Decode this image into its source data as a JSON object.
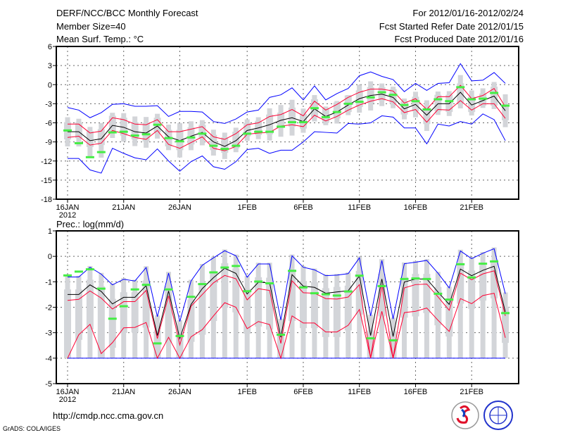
{
  "header": {
    "title": "DERF/NCC/BCC Monthly Forecast",
    "member_size": "Member Size=40",
    "variable": "Mean Surf. Temp.: °C",
    "period": "For 2012/01/16-2012/02/24",
    "started": "Fcst Started Refer Date 2012/01/15",
    "produced": "Fcst Produced Date 2012/01/16"
  },
  "footer": {
    "url": "http://cmdp.ncc.cma.gov.cn",
    "credit": "GrADS: COLA/IGES",
    "logos": [
      "BCC",
      "NCC"
    ]
  },
  "colors": {
    "max_min": "#0000ff",
    "spread": "#ff0033",
    "mean": "#000000",
    "obs": "#44ee44",
    "box": "#d3d5d9"
  },
  "chart_data": [
    {
      "type": "line",
      "title": "Mean Surf. Temp.: °C",
      "x_days": 40,
      "xticks": [
        {
          "day": 0,
          "label": "16JAN",
          "sub": "2012"
        },
        {
          "day": 5,
          "label": "21JAN"
        },
        {
          "day": 10,
          "label": "26JAN"
        },
        {
          "day": 16,
          "label": "1FEB"
        },
        {
          "day": 21,
          "label": "6FEB"
        },
        {
          "day": 26,
          "label": "11FEB"
        },
        {
          "day": 31,
          "label": "16FEB"
        },
        {
          "day": 36,
          "label": "21FEB"
        }
      ],
      "ylim": [
        -18,
        6
      ],
      "yticks": [
        6,
        3,
        0,
        -3,
        -6,
        -9,
        -12,
        -15,
        -18
      ],
      "grid": true,
      "series": [
        {
          "name": "ensemble_max",
          "color": "#0000ff",
          "values": [
            -3.6,
            -4.0,
            -5.2,
            -4.4,
            -3.1,
            -3.0,
            -3.4,
            -3.4,
            -3.3,
            -5.0,
            -4.2,
            -4.2,
            -4.3,
            -5.8,
            -6.1,
            -5.4,
            -4.3,
            -4.0,
            -2.0,
            -1.6,
            -0.5,
            -2.4,
            -0.2,
            -2.4,
            -1.4,
            -0.6,
            1.4,
            2.0,
            1.3,
            0.8,
            -1.1,
            0.2,
            -0.9,
            0.2,
            0.3,
            3.3,
            0.6,
            0.7,
            1.9,
            0.2
          ]
        },
        {
          "name": "ensemble_min",
          "color": "#0000ff",
          "values": [
            -11.6,
            -11.6,
            -13.4,
            -13.9,
            -10.0,
            -10.8,
            -11.5,
            -11.8,
            -10.1,
            -12.0,
            -13.6,
            -12.1,
            -11.2,
            -12.9,
            -13.3,
            -12.1,
            -10.2,
            -10.0,
            -10.8,
            -10.3,
            -10.3,
            -9.0,
            -7.4,
            -7.5,
            -7.6,
            -6.1,
            -6.2,
            -6.0,
            -4.9,
            -5.1,
            -6.8,
            -6.8,
            -9.3,
            -6.2,
            -6.5,
            -5.8,
            -6.2,
            -4.6,
            -5.5,
            -8.8
          ]
        },
        {
          "name": "upper_spread",
          "color": "#ff0033",
          "values": [
            -6.2,
            -6.2,
            -7.6,
            -7.3,
            -5.2,
            -5.5,
            -6.2,
            -6.3,
            -5.5,
            -7.4,
            -7.4,
            -7.0,
            -6.6,
            -8.2,
            -8.6,
            -7.7,
            -6.3,
            -6.0,
            -5.0,
            -4.7,
            -3.9,
            -4.9,
            -2.6,
            -4.0,
            -3.1,
            -2.0,
            -1.2,
            -0.7,
            -0.7,
            -1.0,
            -2.9,
            -2.2,
            -3.9,
            -1.9,
            -1.9,
            -0.1,
            -2.2,
            -1.7,
            -0.6,
            -3.5
          ]
        },
        {
          "name": "lower_spread",
          "color": "#ff0033",
          "values": [
            -8.3,
            -8.1,
            -9.5,
            -9.2,
            -7.2,
            -7.7,
            -8.3,
            -8.6,
            -7.2,
            -9.4,
            -10.0,
            -9.1,
            -8.2,
            -10.0,
            -10.4,
            -9.7,
            -7.8,
            -7.6,
            -7.5,
            -6.5,
            -6.3,
            -6.6,
            -4.8,
            -5.7,
            -5.0,
            -4.0,
            -3.2,
            -2.6,
            -2.2,
            -2.7,
            -4.4,
            -3.9,
            -5.9,
            -3.9,
            -4.0,
            -2.5,
            -4.0,
            -3.0,
            -3.0,
            -5.3
          ]
        },
        {
          "name": "ensemble_mean",
          "color": "#000000",
          "values": [
            -7.4,
            -7.4,
            -8.8,
            -8.5,
            -6.4,
            -6.7,
            -7.4,
            -7.6,
            -6.5,
            -8.2,
            -8.8,
            -8.1,
            -7.5,
            -9.0,
            -9.7,
            -8.8,
            -7.2,
            -6.8,
            -6.3,
            -5.6,
            -5.2,
            -5.8,
            -3.8,
            -5.0,
            -4.3,
            -3.2,
            -2.2,
            -1.7,
            -1.5,
            -2.0,
            -3.8,
            -3.1,
            -4.8,
            -3.0,
            -3.0,
            -1.2,
            -3.2,
            -2.5,
            -1.8,
            -4.1
          ]
        },
        {
          "name": "observed",
          "color": "#44ee44",
          "values": [
            -7.2,
            -9.2,
            -11.4,
            -10.6,
            -7.5,
            -7.4,
            -8.0,
            -7.8,
            -6.3,
            -8.4,
            -8.9,
            -8.3,
            -7.7,
            -9.6,
            -10.1,
            -9.6,
            -7.7,
            -7.4,
            -7.4,
            -6.6,
            -5.9,
            -5.9,
            -3.7,
            -5.1,
            -4.3,
            -3.0,
            -2.7,
            -2.0,
            -1.2,
            -1.6,
            -3.2,
            -2.6,
            -3.9,
            -2.3,
            -2.6,
            -0.4,
            -2.3,
            -2.2,
            -1.3,
            -3.3
          ]
        }
      ]
    },
    {
      "type": "line",
      "title": "Prec.: log(mm/d)",
      "x_days": 40,
      "xticks": [
        {
          "day": 0,
          "label": "16JAN",
          "sub": "2012"
        },
        {
          "day": 5,
          "label": "21JAN"
        },
        {
          "day": 10,
          "label": "26JAN"
        },
        {
          "day": 16,
          "label": "1FEB"
        },
        {
          "day": 21,
          "label": "6FEB"
        },
        {
          "day": 26,
          "label": "11FEB"
        },
        {
          "day": 31,
          "label": "16FEB"
        },
        {
          "day": 36,
          "label": "21FEB"
        }
      ],
      "ylim": [
        -5,
        1
      ],
      "yticks": [
        1,
        0,
        -1,
        -2,
        -3,
        -4,
        -5
      ],
      "grid": true,
      "series": [
        {
          "name": "ensemble_max",
          "color": "#0000ff",
          "values": [
            -0.81,
            -0.81,
            -0.43,
            -0.7,
            -1.12,
            -0.9,
            -0.97,
            -0.44,
            -2.37,
            -0.66,
            -2.56,
            -0.97,
            -0.35,
            -0.06,
            0.22,
            0.02,
            -0.82,
            -0.3,
            -0.3,
            -2.5,
            0.02,
            -0.43,
            -0.53,
            -0.76,
            -0.74,
            -0.68,
            -0.06,
            -2.34,
            -0.16,
            -2.46,
            -0.29,
            -0.23,
            -0.16,
            -0.66,
            -1.24,
            0.21,
            -0.09,
            0.12,
            0.3,
            -1.47
          ]
        },
        {
          "name": "ensemble_min",
          "color": "#0000ff",
          "values": [
            -4,
            -4,
            -4,
            -4,
            -4,
            -4,
            -4,
            -4,
            -4,
            -4,
            -4,
            -4,
            -4,
            -4,
            -4,
            -4,
            -4,
            -4,
            -4,
            -4,
            -4,
            -4,
            -4,
            -4,
            -4,
            -4,
            -4,
            -4,
            -4,
            -4,
            -4,
            -4,
            -4,
            -4,
            -4,
            -4,
            -4,
            -4,
            -4,
            -4
          ]
        },
        {
          "name": "upper_spread",
          "color": "#ff0033",
          "values": [
            -1.73,
            -1.69,
            -1.36,
            -1.64,
            -2.07,
            -1.78,
            -1.78,
            -1.34,
            -3.23,
            -1.55,
            -3.48,
            -1.96,
            -1.5,
            -1.04,
            -0.75,
            -0.88,
            -1.71,
            -1.27,
            -1.34,
            -3.42,
            -0.96,
            -1.43,
            -1.45,
            -1.66,
            -1.68,
            -1.6,
            -1.11,
            -4.0,
            -1.12,
            -4.0,
            -1.24,
            -1.11,
            -1.09,
            -1.59,
            -2.12,
            -0.66,
            -0.92,
            -0.69,
            -0.57,
            -2.34
          ]
        },
        {
          "name": "lower_spread",
          "color": "#ff0033",
          "values": [
            -4.0,
            -3.08,
            -2.67,
            -3.82,
            -3.39,
            -2.81,
            -2.79,
            -2.6,
            -4.0,
            -3.18,
            -4.0,
            -3.16,
            -2.88,
            -2.34,
            -1.82,
            -2.0,
            -2.84,
            -2.56,
            -2.68,
            -4.0,
            -2.34,
            -2.62,
            -2.62,
            -2.97,
            -2.97,
            -2.71,
            -2.09,
            -3.98,
            -2.16,
            -4.0,
            -2.21,
            -2.16,
            -2.03,
            -2.51,
            -2.95,
            -1.66,
            -1.86,
            -1.54,
            -1.45,
            -3.2
          ]
        },
        {
          "name": "ensemble_mean",
          "color": "#000000",
          "values": [
            -1.5,
            -1.5,
            -1.12,
            -1.38,
            -1.87,
            -1.61,
            -1.61,
            -1.15,
            -3.11,
            -1.36,
            -3.23,
            -1.89,
            -1.27,
            -0.84,
            -0.47,
            -0.67,
            -1.48,
            -1.02,
            -1.04,
            -3.18,
            -0.72,
            -1.17,
            -1.22,
            -1.45,
            -1.4,
            -1.35,
            -0.77,
            -3.11,
            -0.89,
            -3.15,
            -1.01,
            -0.89,
            -0.89,
            -1.4,
            -1.89,
            -0.5,
            -0.76,
            -0.55,
            -0.39,
            -2.18
          ]
        },
        {
          "name": "observed",
          "color": "#44ee44",
          "values": [
            -0.75,
            -0.6,
            -0.51,
            -1.27,
            -2.45,
            -1.96,
            -1.3,
            -1.12,
            -3.42,
            -1.3,
            -3.13,
            -1.59,
            -1.09,
            -0.63,
            -0.44,
            -0.38,
            -1.37,
            -0.99,
            -1.06,
            -3.08,
            -0.57,
            -1.22,
            -1.45,
            -1.49,
            -1.54,
            -1.38,
            -0.76,
            -3.22,
            -1.17,
            -3.3,
            -0.89,
            -0.87,
            -0.89,
            -1.47,
            -1.7,
            -0.31,
            -0.83,
            -0.29,
            -0.2,
            -2.23
          ]
        }
      ]
    }
  ]
}
